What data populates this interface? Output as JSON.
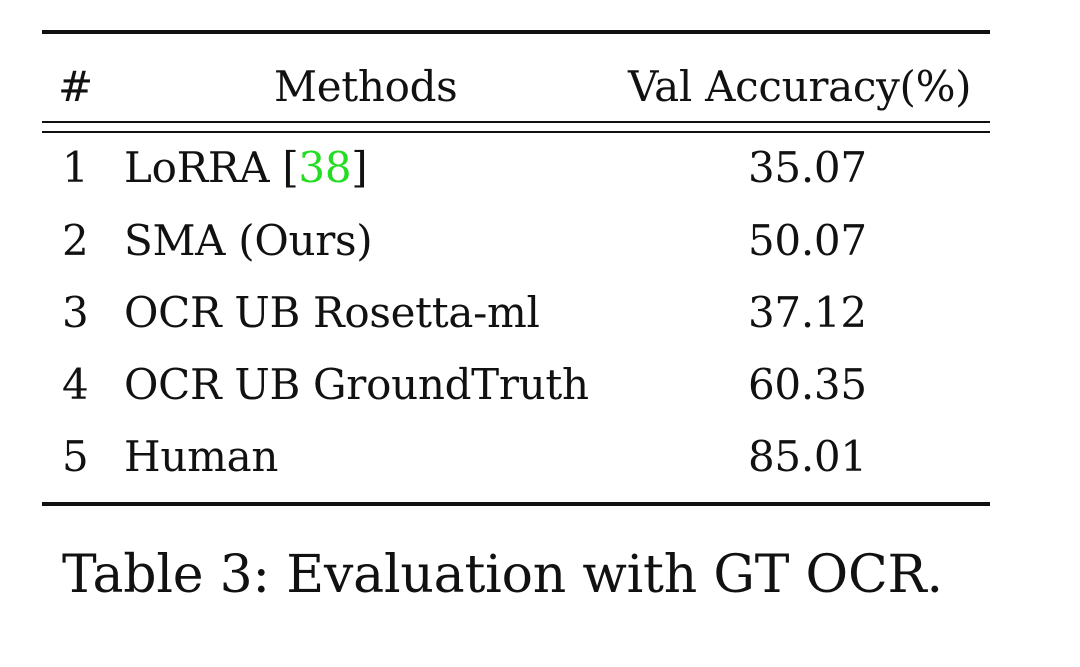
{
  "table": {
    "headers": {
      "index": "#",
      "method": "Methods",
      "accuracy": "Val Accuracy(%)"
    },
    "rows": [
      {
        "index": "1",
        "method": "LoRRA ",
        "cite_open": "[",
        "cite_ref": "38",
        "cite_close": "]",
        "accuracy": "35.07"
      },
      {
        "index": "2",
        "method": "SMA (Ours)",
        "accuracy": "50.07"
      },
      {
        "index": "3",
        "method": "OCR UB Rosetta-ml",
        "accuracy": "37.12"
      },
      {
        "index": "4",
        "method": "OCR UB GroundTruth",
        "accuracy": "60.35"
      },
      {
        "index": "5",
        "method": "Human",
        "accuracy": "85.01"
      }
    ]
  },
  "caption": "Table 3: Evaluation with GT OCR.",
  "colors": {
    "text": "#111111",
    "citation": "#22dd22"
  }
}
